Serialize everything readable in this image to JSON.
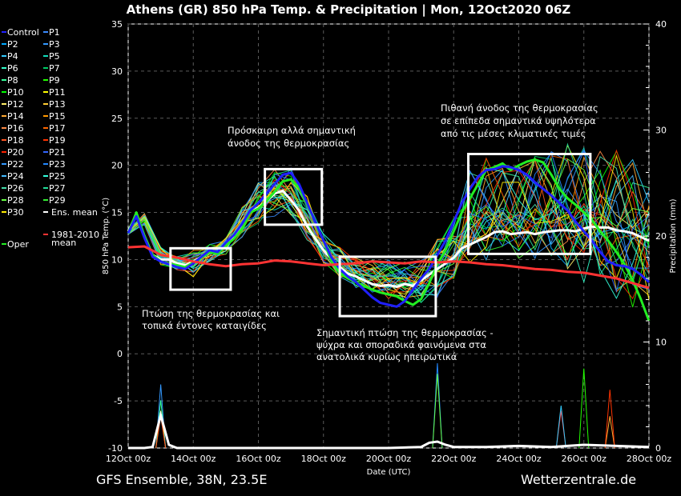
{
  "chart_data": {
    "type": "line",
    "title": "Athens  (GR)  850 hPa Temp. & Precipitation | Mon, 12Oct2020 06Z",
    "xlabel": "Date (UTC)",
    "ylabel_left": "850 hPa Temp. (°C)",
    "ylabel_right": "Precipitation (mm)",
    "x_ticks": [
      "12Oct 00z",
      "14Oct 00z",
      "16Oct 00z",
      "18Oct 00z",
      "20Oct 00z",
      "22Oct 00z",
      "24Oct 00z",
      "26Oct 00z",
      "28Oct 00z"
    ],
    "x_range_days": [
      0,
      16
    ],
    "y_left_ticks": [
      "35",
      "30",
      "25",
      "20",
      "15",
      "10",
      "5",
      "0",
      "-5",
      "-10"
    ],
    "y_left_range": [
      -10,
      35
    ],
    "y_right_ticks": [
      "40",
      "30",
      "20",
      "10",
      "0"
    ],
    "y_right_range": [
      0,
      40
    ],
    "grid": true,
    "legend": {
      "entries": [
        "Control",
        "P1",
        "P2",
        "P3",
        "P4",
        "P5",
        "P6",
        "P7",
        "P8",
        "P9",
        "P10",
        "P11",
        "P12",
        "P13",
        "P14",
        "P15",
        "P16",
        "P17",
        "P18",
        "P19",
        "P20",
        "P21",
        "P22",
        "P23",
        "P24",
        "P25",
        "P26",
        "P27",
        "P28",
        "P29",
        "P30",
        "Ens. mean",
        "Oper",
        "1981-2010",
        "mean"
      ],
      "colors": [
        "#2020ff",
        "#3a8bff",
        "#00aaff",
        "#3399ff",
        "#33ccff",
        "#11ddbb",
        "#33ffcc",
        "#00cc66",
        "#33ff99",
        "#22ff00",
        "#00ff00",
        "#ffff00",
        "#ffee66",
        "#ffcc33",
        "#ffaa33",
        "#ff9900",
        "#ff8844",
        "#ff6600",
        "#ff5522",
        "#ff3300",
        "#ff2200",
        "#3366ff",
        "#3399ff",
        "#2288ff",
        "#44bbff",
        "#33ffdd",
        "#44ddaa",
        "#22dd99",
        "#66ff44",
        "#33ee33",
        "#ffee00",
        "#ffffff",
        "#22ee22",
        "#ff3333"
      ]
    },
    "annotations": [
      "Πτώση της θερμοκρασίας και",
      "τοπικά έντονες καταιγίδες",
      "Πρόσκαιρη αλλά σημαντική",
      "άνοδος της θερμοκρασίας",
      "Σημαντική πτώση της θερμοκρασίας -",
      "ψύχρα και σποραδικά φαινόμενα στα",
      "ανατολικά κυρίως ηπειρωτικά",
      "Πιθανή άνοδος της θερμοκρασίας",
      "σε επίπεδα σημαντικά υψηλότερα",
      "από τις μέσες κλιματικές τιμές"
    ],
    "boxes": [
      {
        "x": [
          1.3,
          3.15
        ],
        "y": [
          6.8,
          11.2
        ]
      },
      {
        "x": [
          4.2,
          5.95
        ],
        "y": [
          13.7,
          19.6
        ]
      },
      {
        "x": [
          6.5,
          9.45
        ],
        "y": [
          4.0,
          10.3
        ]
      },
      {
        "x": [
          10.45,
          14.2
        ],
        "y": [
          10.6,
          21.2
        ]
      }
    ],
    "series": [
      {
        "name": "Ens. mean",
        "color": "#ffffff",
        "x": [
          0,
          0.25,
          0.5,
          0.75,
          1,
          1.25,
          1.5,
          1.75,
          2,
          2.25,
          2.5,
          2.75,
          3,
          3.25,
          3.5,
          3.75,
          4,
          4.25,
          4.5,
          4.75,
          5,
          5.25,
          5.5,
          5.75,
          6,
          6.25,
          6.5,
          6.75,
          7,
          7.25,
          7.5,
          7.75,
          8,
          8.25,
          8.5,
          8.75,
          9,
          9.25,
          9.5,
          9.75,
          10,
          10.25,
          10.5,
          10.75,
          11,
          11.25,
          11.5,
          11.75,
          12,
          12.25,
          12.5,
          12.75,
          13,
          13.25,
          13.5,
          13.75,
          14,
          14.25,
          14.5,
          14.75,
          15,
          15.25,
          15.5,
          15.75,
          16
        ],
        "y": [
          13.0,
          14.8,
          12.5,
          10.5,
          10.0,
          10.0,
          9.6,
          9.4,
          9.8,
          10.3,
          10.9,
          10.7,
          11.6,
          12.3,
          13.5,
          15.0,
          15.5,
          16.2,
          17.0,
          17.3,
          16.3,
          15.2,
          13.5,
          12.2,
          11.0,
          10.0,
          9.2,
          8.5,
          8.2,
          7.8,
          7.4,
          7.2,
          7.3,
          7.1,
          7.4,
          7.2,
          7.8,
          8.4,
          9.0,
          9.6,
          10.2,
          11.2,
          11.6,
          12.0,
          12.4,
          12.9,
          13.0,
          12.7,
          12.8,
          12.9,
          12.7,
          12.9,
          13.0,
          13.1,
          13.1,
          13.0,
          13.3,
          13.5,
          13.4,
          13.4,
          13.1,
          13.0,
          12.8,
          12.4,
          12.0
        ]
      },
      {
        "name": "Oper",
        "color": "#22ee22",
        "x": [
          0,
          0.25,
          0.5,
          0.75,
          1,
          1.25,
          1.5,
          1.75,
          2,
          2.25,
          2.5,
          2.75,
          3,
          3.25,
          3.5,
          3.75,
          4,
          4.25,
          4.5,
          4.75,
          5,
          5.25,
          5.5,
          5.75,
          6,
          6.25,
          6.5,
          6.75,
          7,
          7.25,
          7.5,
          7.75,
          8,
          8.25,
          8.5,
          8.75,
          9,
          9.25,
          9.5,
          9.75,
          10,
          10.25,
          10.5,
          10.75,
          11,
          11.25,
          11.5,
          11.75,
          12,
          12.25,
          12.5,
          12.75,
          13,
          13.25,
          13.5,
          13.75,
          14,
          14.25,
          14.5,
          14.75,
          15,
          15.25,
          15.5,
          15.75,
          16
        ],
        "y": [
          12.8,
          15.0,
          12.5,
          10.5,
          9.8,
          9.6,
          9.4,
          9.2,
          9.7,
          10.2,
          10.8,
          10.6,
          11.5,
          12.2,
          13.3,
          15.0,
          15.4,
          16.2,
          17.2,
          18.3,
          18.5,
          17.6,
          15.8,
          14.0,
          12.0,
          9.8,
          8.6,
          8.0,
          7.6,
          7.2,
          6.8,
          6.5,
          6.3,
          6.1,
          5.6,
          5.2,
          5.8,
          7.5,
          9.5,
          11.0,
          13.0,
          15.0,
          16.5,
          18.0,
          19.5,
          19.8,
          20.2,
          19.5,
          20.0,
          20.4,
          20.6,
          20.3,
          19.0,
          17.5,
          16.5,
          15.8,
          15.0,
          14.2,
          13.0,
          12.0,
          10.8,
          9.5,
          7.8,
          5.8,
          3.5
        ]
      },
      {
        "name": "Control",
        "color": "#2020ff",
        "x": [
          0,
          0.25,
          0.5,
          0.75,
          1,
          1.25,
          1.5,
          1.75,
          2,
          2.25,
          2.5,
          2.75,
          3,
          3.25,
          3.5,
          3.75,
          4,
          4.25,
          4.5,
          4.75,
          5,
          5.25,
          5.5,
          5.75,
          6,
          6.25,
          6.5,
          6.75,
          7,
          7.25,
          7.5,
          7.75,
          8,
          8.25,
          8.5,
          8.75,
          9,
          9.25,
          9.5,
          9.75,
          10,
          10.25,
          10.5,
          10.75,
          11,
          11.25,
          11.5,
          11.75,
          12,
          12.25,
          12.5,
          12.75,
          13,
          13.25,
          13.5,
          13.75,
          14,
          14.25,
          14.5,
          14.75,
          15,
          15.25,
          15.5,
          15.75,
          16
        ],
        "y": [
          12.8,
          14.6,
          12.3,
          10.3,
          9.8,
          9.5,
          9.2,
          9.0,
          9.6,
          10.3,
          11.0,
          10.8,
          11.8,
          12.6,
          13.8,
          15.2,
          16.0,
          17.0,
          18.0,
          19.0,
          19.2,
          18.0,
          16.0,
          14.0,
          12.0,
          10.2,
          9.0,
          8.2,
          7.6,
          6.8,
          6.0,
          5.4,
          5.2,
          5.0,
          5.6,
          6.8,
          8.0,
          9.0,
          10.5,
          12.0,
          14.0,
          16.0,
          17.5,
          18.8,
          19.5,
          19.6,
          19.9,
          19.8,
          19.5,
          19.0,
          18.2,
          17.5,
          16.8,
          16.0,
          15.2,
          14.0,
          13.0,
          12.0,
          10.8,
          9.8,
          9.4,
          9.3,
          9.0,
          8.4,
          7.6
        ]
      },
      {
        "name": "1981-2010 mean",
        "color": "#ff3333",
        "x": [
          0,
          0.5,
          1,
          1.5,
          2,
          2.5,
          3,
          3.5,
          4,
          4.5,
          5,
          5.5,
          6,
          6.5,
          7,
          7.5,
          8,
          8.5,
          9,
          9.5,
          10,
          10.5,
          11,
          11.5,
          12,
          12.5,
          13,
          13.5,
          14,
          14.5,
          15,
          15.5,
          16
        ],
        "y": [
          11.3,
          11.4,
          10.5,
          10.2,
          9.8,
          9.5,
          9.3,
          9.5,
          9.6,
          9.9,
          9.8,
          9.6,
          9.4,
          9.5,
          9.6,
          9.8,
          9.7,
          9.6,
          9.8,
          9.7,
          9.8,
          9.7,
          9.5,
          9.4,
          9.2,
          9.0,
          8.9,
          8.7,
          8.6,
          8.3,
          8.0,
          7.5,
          7.0
        ]
      }
    ],
    "ensemble_spread": {
      "x": [
        0,
        0.5,
        1,
        1.5,
        2,
        2.5,
        3,
        3.5,
        4,
        4.5,
        5,
        5.5,
        6,
        6.5,
        7,
        7.5,
        8,
        8.5,
        9,
        9.5,
        10,
        10.5,
        11,
        11.5,
        12,
        12.5,
        13,
        13.5,
        14,
        14.5,
        15,
        15.5,
        16
      ],
      "low": [
        12.6,
        13.6,
        9.3,
        8.8,
        8.0,
        9.6,
        10.4,
        12.2,
        13.6,
        14.2,
        13.8,
        11.6,
        9.2,
        7.8,
        6.8,
        6.2,
        5.6,
        5.2,
        4.8,
        5.6,
        6.5,
        7.8,
        8.6,
        9.6,
        8.8,
        8.6,
        8.0,
        6.8,
        6.5,
        5.5,
        4.5,
        4.0,
        3.8
      ],
      "high": [
        13.4,
        15.1,
        11.6,
        10.6,
        11.3,
        11.8,
        12.6,
        15.8,
        18.5,
        20.6,
        20.2,
        17.2,
        13.0,
        11.6,
        10.5,
        10.3,
        10.2,
        10.0,
        10.2,
        12.5,
        15.0,
        20.8,
        21.6,
        20.5,
        20.7,
        22.0,
        22.6,
        23.2,
        23.5,
        22.9,
        22.6,
        21.5,
        20.2
      ]
    },
    "precipitation": {
      "spike_x": [
        1.0,
        1.0,
        1.0,
        1.0,
        9.5,
        9.5,
        13.3,
        13.3,
        14.0,
        14.8,
        14.8
      ],
      "spike_mm": [
        6.0,
        4.5,
        3.5,
        3.0,
        8.0,
        7.0,
        3.5,
        4.0,
        7.5,
        3.0,
        5.5
      ],
      "mean_x": [
        0,
        0.5,
        0.75,
        1.0,
        1.25,
        1.5,
        2,
        4,
        6,
        8,
        9,
        9.25,
        9.5,
        9.75,
        10,
        11,
        12,
        13,
        13.5,
        14,
        15,
        16
      ],
      "mean_mm": [
        0,
        0,
        0.1,
        3.1,
        0.3,
        0,
        0,
        0,
        0,
        0,
        0.1,
        0.5,
        0.6,
        0.3,
        0.1,
        0.1,
        0.2,
        0.1,
        0.2,
        0.3,
        0.2,
        0.1
      ]
    }
  },
  "footer": {
    "left": "GFS Ensemble, 38N, 23.5E",
    "right": "Wetterzentrale.de"
  }
}
